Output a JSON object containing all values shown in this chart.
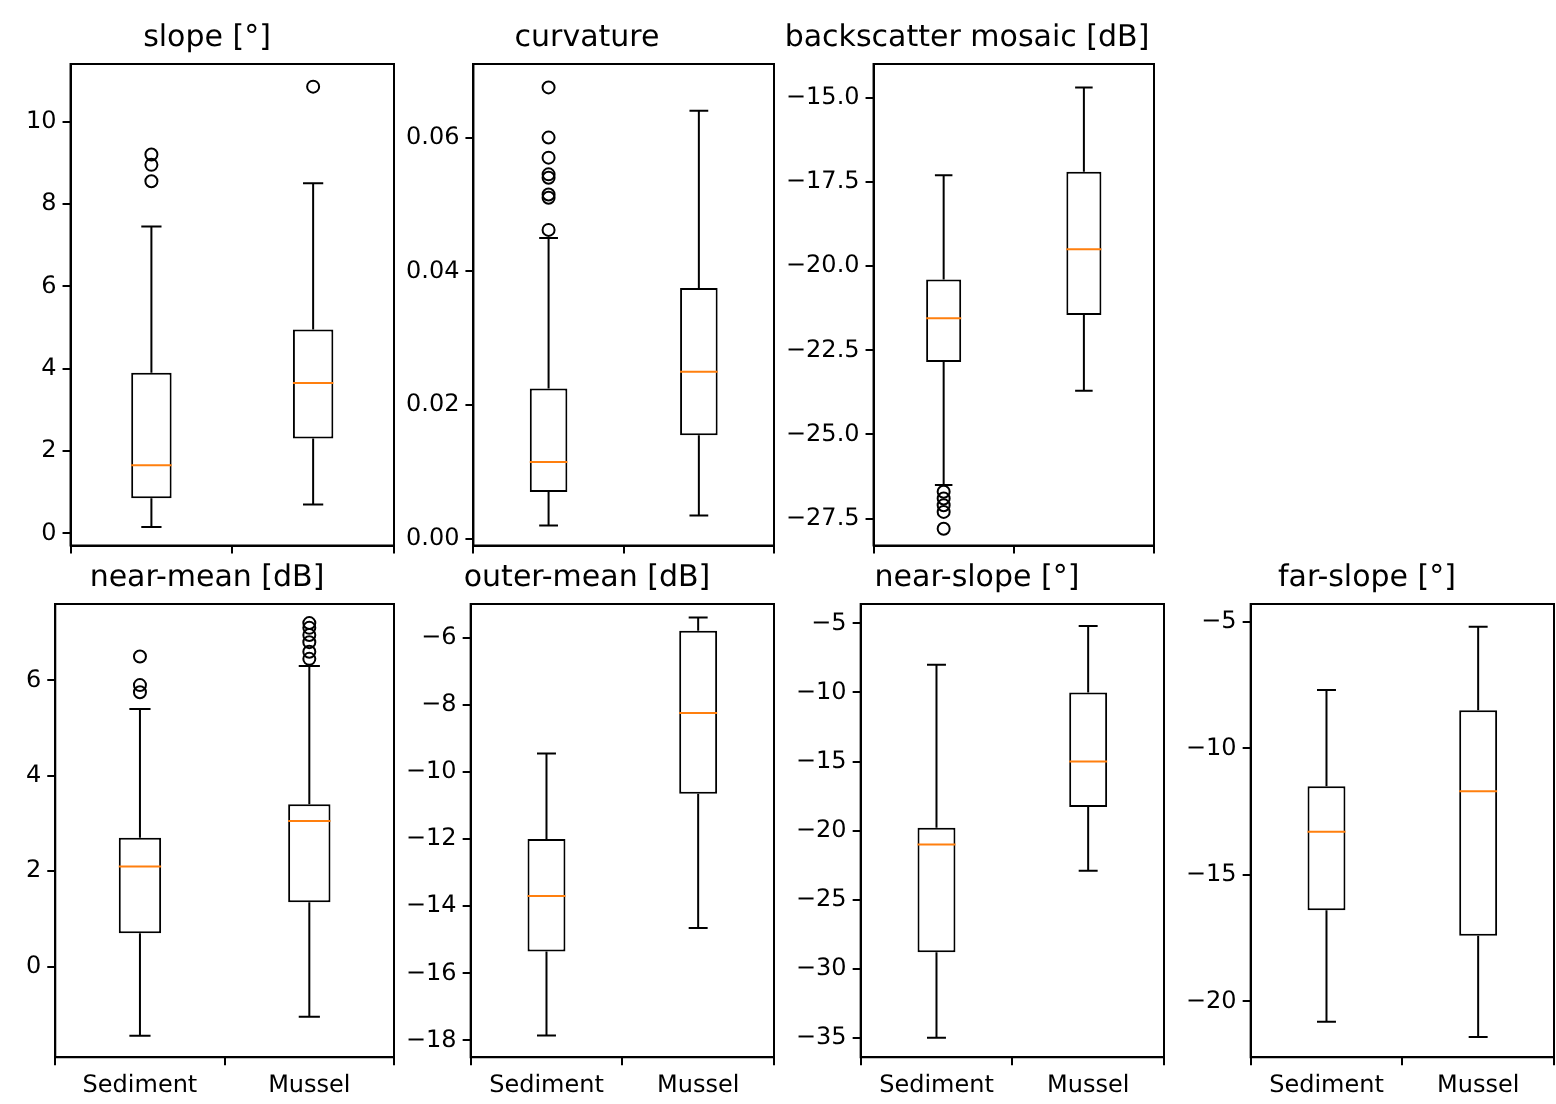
{
  "chart_data": [
    {
      "type": "box",
      "title": "slope [°]",
      "categories": [
        null,
        null
      ],
      "tick_labels": "y",
      "ylim": [
        -0.3,
        11.4
      ],
      "yticks": [
        0,
        2,
        4,
        6,
        8,
        10
      ],
      "series": [
        {
          "color": "#000000",
          "boxes": [
            {
              "low": 0.15,
              "q1": 0.85,
              "median": 1.65,
              "q3": 3.9,
              "high": 7.45,
              "outliers": [
                8.55,
                8.95,
                9.2
              ]
            },
            {
              "low": 0.7,
              "q1": 2.3,
              "median": 3.65,
              "q3": 4.95,
              "high": 8.5,
              "outliers": [
                10.85
              ]
            }
          ]
        }
      ]
    },
    {
      "type": "box",
      "title": "curvature",
      "categories": [
        null,
        null
      ],
      "tick_labels": "y",
      "ylim": [
        -0.001,
        0.071
      ],
      "yticks": [
        {
          "value": 0,
          "label": "0.00"
        },
        {
          "value": 0.02,
          "label": "0.02"
        },
        {
          "value": 0.04,
          "label": "0.04"
        },
        {
          "value": 0.06,
          "label": "0.06"
        }
      ],
      "series": [
        {
          "color": "#000000",
          "boxes": [
            {
              "low": 0.002,
              "q1": 0.007,
              "median": 0.0115,
              "q3": 0.0225,
              "high": 0.045,
              "outliers": [
                0.0462,
                0.051,
                0.0515,
                0.054,
                0.0545,
                0.057,
                0.06,
                0.0675
              ]
            },
            {
              "low": 0.0035,
              "q1": 0.0155,
              "median": 0.025,
              "q3": 0.0375,
              "high": 0.064
            }
          ]
        }
      ]
    },
    {
      "type": "box",
      "title": "backscatter mosaic [dB]",
      "categories": [
        null,
        null
      ],
      "tick_labels": "y",
      "ylim": [
        -28.3,
        -14.0
      ],
      "yticks": [
        {
          "value": -27.5,
          "label": "−27.5"
        },
        {
          "value": -25,
          "label": "−25.0"
        },
        {
          "value": -22.5,
          "label": "−22.5"
        },
        {
          "value": -20,
          "label": "−20.0"
        },
        {
          "value": -17.5,
          "label": "−17.5"
        },
        {
          "value": -15,
          "label": "−15.0"
        }
      ],
      "series": [
        {
          "color": "#000000",
          "boxes": [
            {
              "low": -26.5,
              "q1": -22.85,
              "median": -21.55,
              "q3": -20.4,
              "high": -17.3,
              "outliers": [
                -26.7,
                -26.9,
                -27.1,
                -27.3,
                -27.8
              ]
            },
            {
              "low": -23.7,
              "q1": -21.45,
              "median": -19.5,
              "q3": -17.2,
              "high": -14.7
            }
          ]
        }
      ]
    },
    {
      "type": "box",
      "title": "near-mean [dB]",
      "categories": [
        "Sediment",
        "Mussel"
      ],
      "ylim": [
        -1.9,
        7.6
      ],
      "yticks": [
        0,
        2,
        4,
        6
      ],
      "series": [
        {
          "color": "#000000",
          "boxes": [
            {
              "low": -1.45,
              "q1": 0.7,
              "median": 2.1,
              "q3": 2.7,
              "high": 5.4,
              "outliers": [
                5.75,
                5.9,
                6.5
              ]
            },
            {
              "low": -1.05,
              "q1": 1.35,
              "median": 3.05,
              "q3": 3.4,
              "high": 6.3,
              "outliers": [
                6.45,
                6.6,
                6.8,
                6.95,
                7.1,
                7.2
              ]
            }
          ]
        }
      ]
    },
    {
      "type": "box",
      "title": "outer-mean [dB]",
      "categories": [
        "Sediment",
        "Mussel"
      ],
      "ylim": [
        -18.5,
        -5.0
      ],
      "yticks": [
        {
          "value": -18,
          "label": "−18"
        },
        {
          "value": -16,
          "label": "−16"
        },
        {
          "value": -14,
          "label": "−14"
        },
        {
          "value": -12,
          "label": "−12"
        },
        {
          "value": -10,
          "label": "−10"
        },
        {
          "value": -8,
          "label": "−8"
        },
        {
          "value": -6,
          "label": "−6"
        }
      ],
      "series": [
        {
          "color": "#000000",
          "boxes": [
            {
              "low": -17.85,
              "q1": -15.35,
              "median": -13.7,
              "q3": -12.0,
              "high": -9.45
            },
            {
              "low": -14.65,
              "q1": -10.65,
              "median": -8.25,
              "q3": -5.8,
              "high": -5.4
            }
          ]
        }
      ]
    },
    {
      "type": "box",
      "title": "near-slope [°]",
      "categories": [
        "Sediment",
        "Mussel"
      ],
      "ylim": [
        -36.4,
        -3.6
      ],
      "yticks": [
        {
          "value": -35,
          "label": "−35"
        },
        {
          "value": -30,
          "label": "−30"
        },
        {
          "value": -25,
          "label": "−25"
        },
        {
          "value": -20,
          "label": "−20"
        },
        {
          "value": -15,
          "label": "−15"
        },
        {
          "value": -10,
          "label": "−10"
        },
        {
          "value": -5,
          "label": "−5"
        }
      ],
      "series": [
        {
          "color": "#000000",
          "boxes": [
            {
              "low": -35,
              "q1": -28.8,
              "median": -21,
              "q3": -19.8,
              "high": -8
            },
            {
              "low": -22.9,
              "q1": -18.3,
              "median": -15,
              "q3": -10,
              "high": -5.2
            }
          ]
        }
      ]
    },
    {
      "type": "box",
      "title": "far-slope [°]",
      "categories": [
        "Sediment",
        "Mussel"
      ],
      "ylim": [
        -22.2,
        -4.3
      ],
      "yticks": [
        {
          "value": -20,
          "label": "−20"
        },
        {
          "value": -15,
          "label": "−15"
        },
        {
          "value": -10,
          "label": "−10"
        },
        {
          "value": -5,
          "label": "−5"
        }
      ],
      "series": [
        {
          "color": "#000000",
          "boxes": [
            {
              "low": -20.8,
              "q1": -16.4,
              "median": -13.3,
              "q3": -11.5,
              "high": -7.7
            },
            {
              "low": -21.4,
              "q1": -17.4,
              "median": -11.7,
              "q3": -8.5,
              "high": -5.2
            }
          ]
        }
      ]
    }
  ]
}
